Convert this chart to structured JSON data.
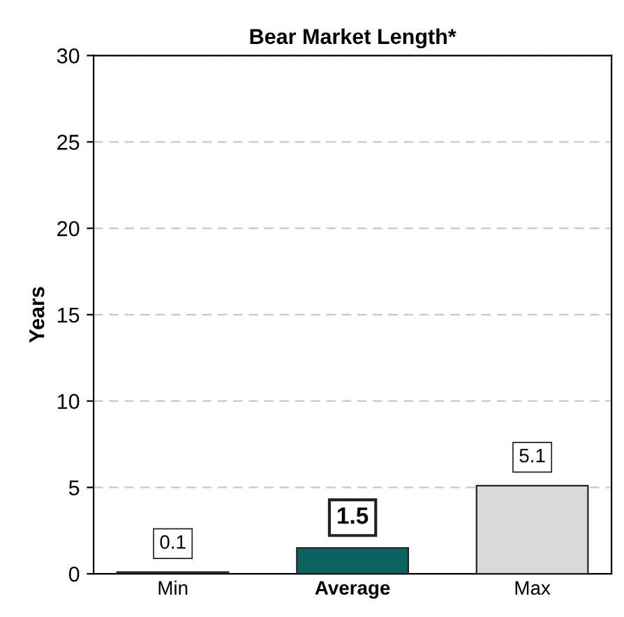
{
  "chart_data": {
    "type": "bar",
    "title": "Bear Market Length*",
    "ylabel": "Years",
    "categories": [
      "Min",
      "Average",
      "Max"
    ],
    "values": [
      0.1,
      1.5,
      5.1
    ],
    "colors": [
      "#303030",
      "#0b6360",
      "#d9d9d9"
    ],
    "ylim": [
      0,
      30
    ],
    "yticks": [
      0,
      5,
      10,
      15,
      20,
      25,
      30
    ],
    "grid": "y",
    "data_labels": true
  }
}
